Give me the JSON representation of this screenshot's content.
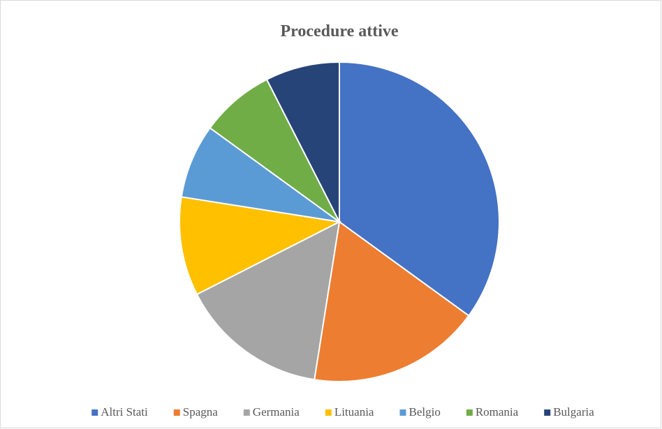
{
  "chart_data": {
    "type": "pie",
    "title": "Procedure attive",
    "categories": [
      "Altri Stati",
      "Spagna",
      "Germania",
      "Lituania",
      "Belgio",
      "Romania",
      "Bulgaria"
    ],
    "values": [
      14,
      7,
      6,
      4,
      3,
      3,
      3
    ],
    "colors": [
      "#4472c4",
      "#ed7d31",
      "#a5a5a5",
      "#ffc000",
      "#5b9bd5",
      "#70ad47",
      "#264478"
    ],
    "legend": "bottom"
  }
}
